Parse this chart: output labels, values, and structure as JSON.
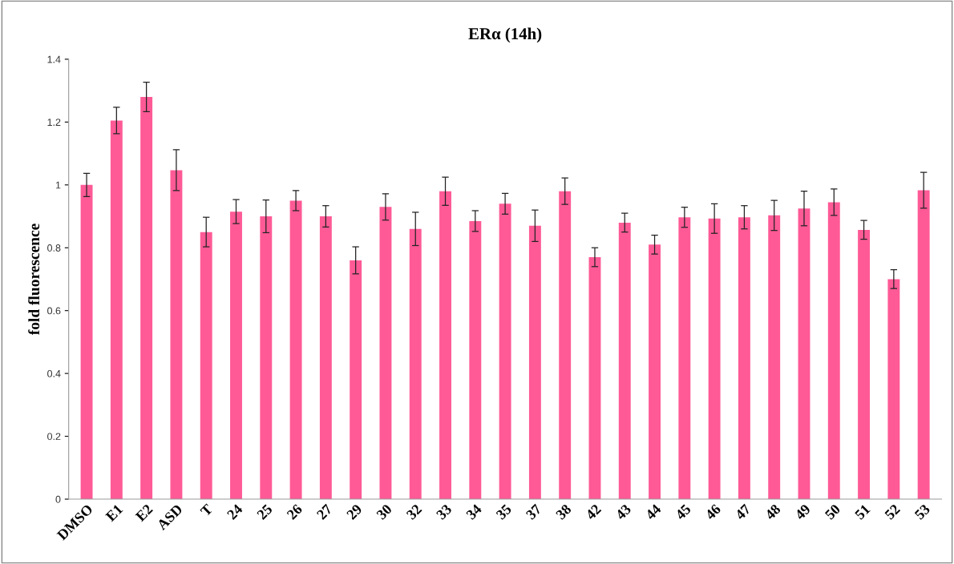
{
  "chart_data": {
    "type": "bar",
    "title": "ERα (14h)",
    "ylabel": "fold fluorescence",
    "categories": [
      "DMSO",
      "E1",
      "E2",
      "ASD",
      "T",
      "24",
      "25",
      "26",
      "27",
      "29",
      "30",
      "32",
      "33",
      "34",
      "35",
      "37",
      "38",
      "42",
      "43",
      "44",
      "45",
      "46",
      "47",
      "48",
      "49",
      "50",
      "51",
      "52",
      "53"
    ],
    "values": [
      1.0,
      1.205,
      1.28,
      1.047,
      0.85,
      0.915,
      0.9,
      0.95,
      0.9,
      0.76,
      0.93,
      0.86,
      0.98,
      0.885,
      0.94,
      0.87,
      0.98,
      0.77,
      0.88,
      0.81,
      0.897,
      0.893,
      0.897,
      0.903,
      0.925,
      0.945,
      0.857,
      0.7,
      0.983
    ],
    "errors": [
      0.037,
      0.042,
      0.047,
      0.065,
      0.047,
      0.038,
      0.052,
      0.032,
      0.034,
      0.043,
      0.042,
      0.053,
      0.045,
      0.033,
      0.033,
      0.05,
      0.042,
      0.03,
      0.03,
      0.03,
      0.032,
      0.047,
      0.037,
      0.048,
      0.055,
      0.042,
      0.03,
      0.03,
      0.057
    ],
    "color": "#ff5a96",
    "ylim": [
      0,
      1.4
    ],
    "yticks": [
      0,
      0.2,
      0.4,
      0.6,
      0.8,
      1,
      1.2,
      1.4
    ],
    "grid": false,
    "legend": false
  }
}
